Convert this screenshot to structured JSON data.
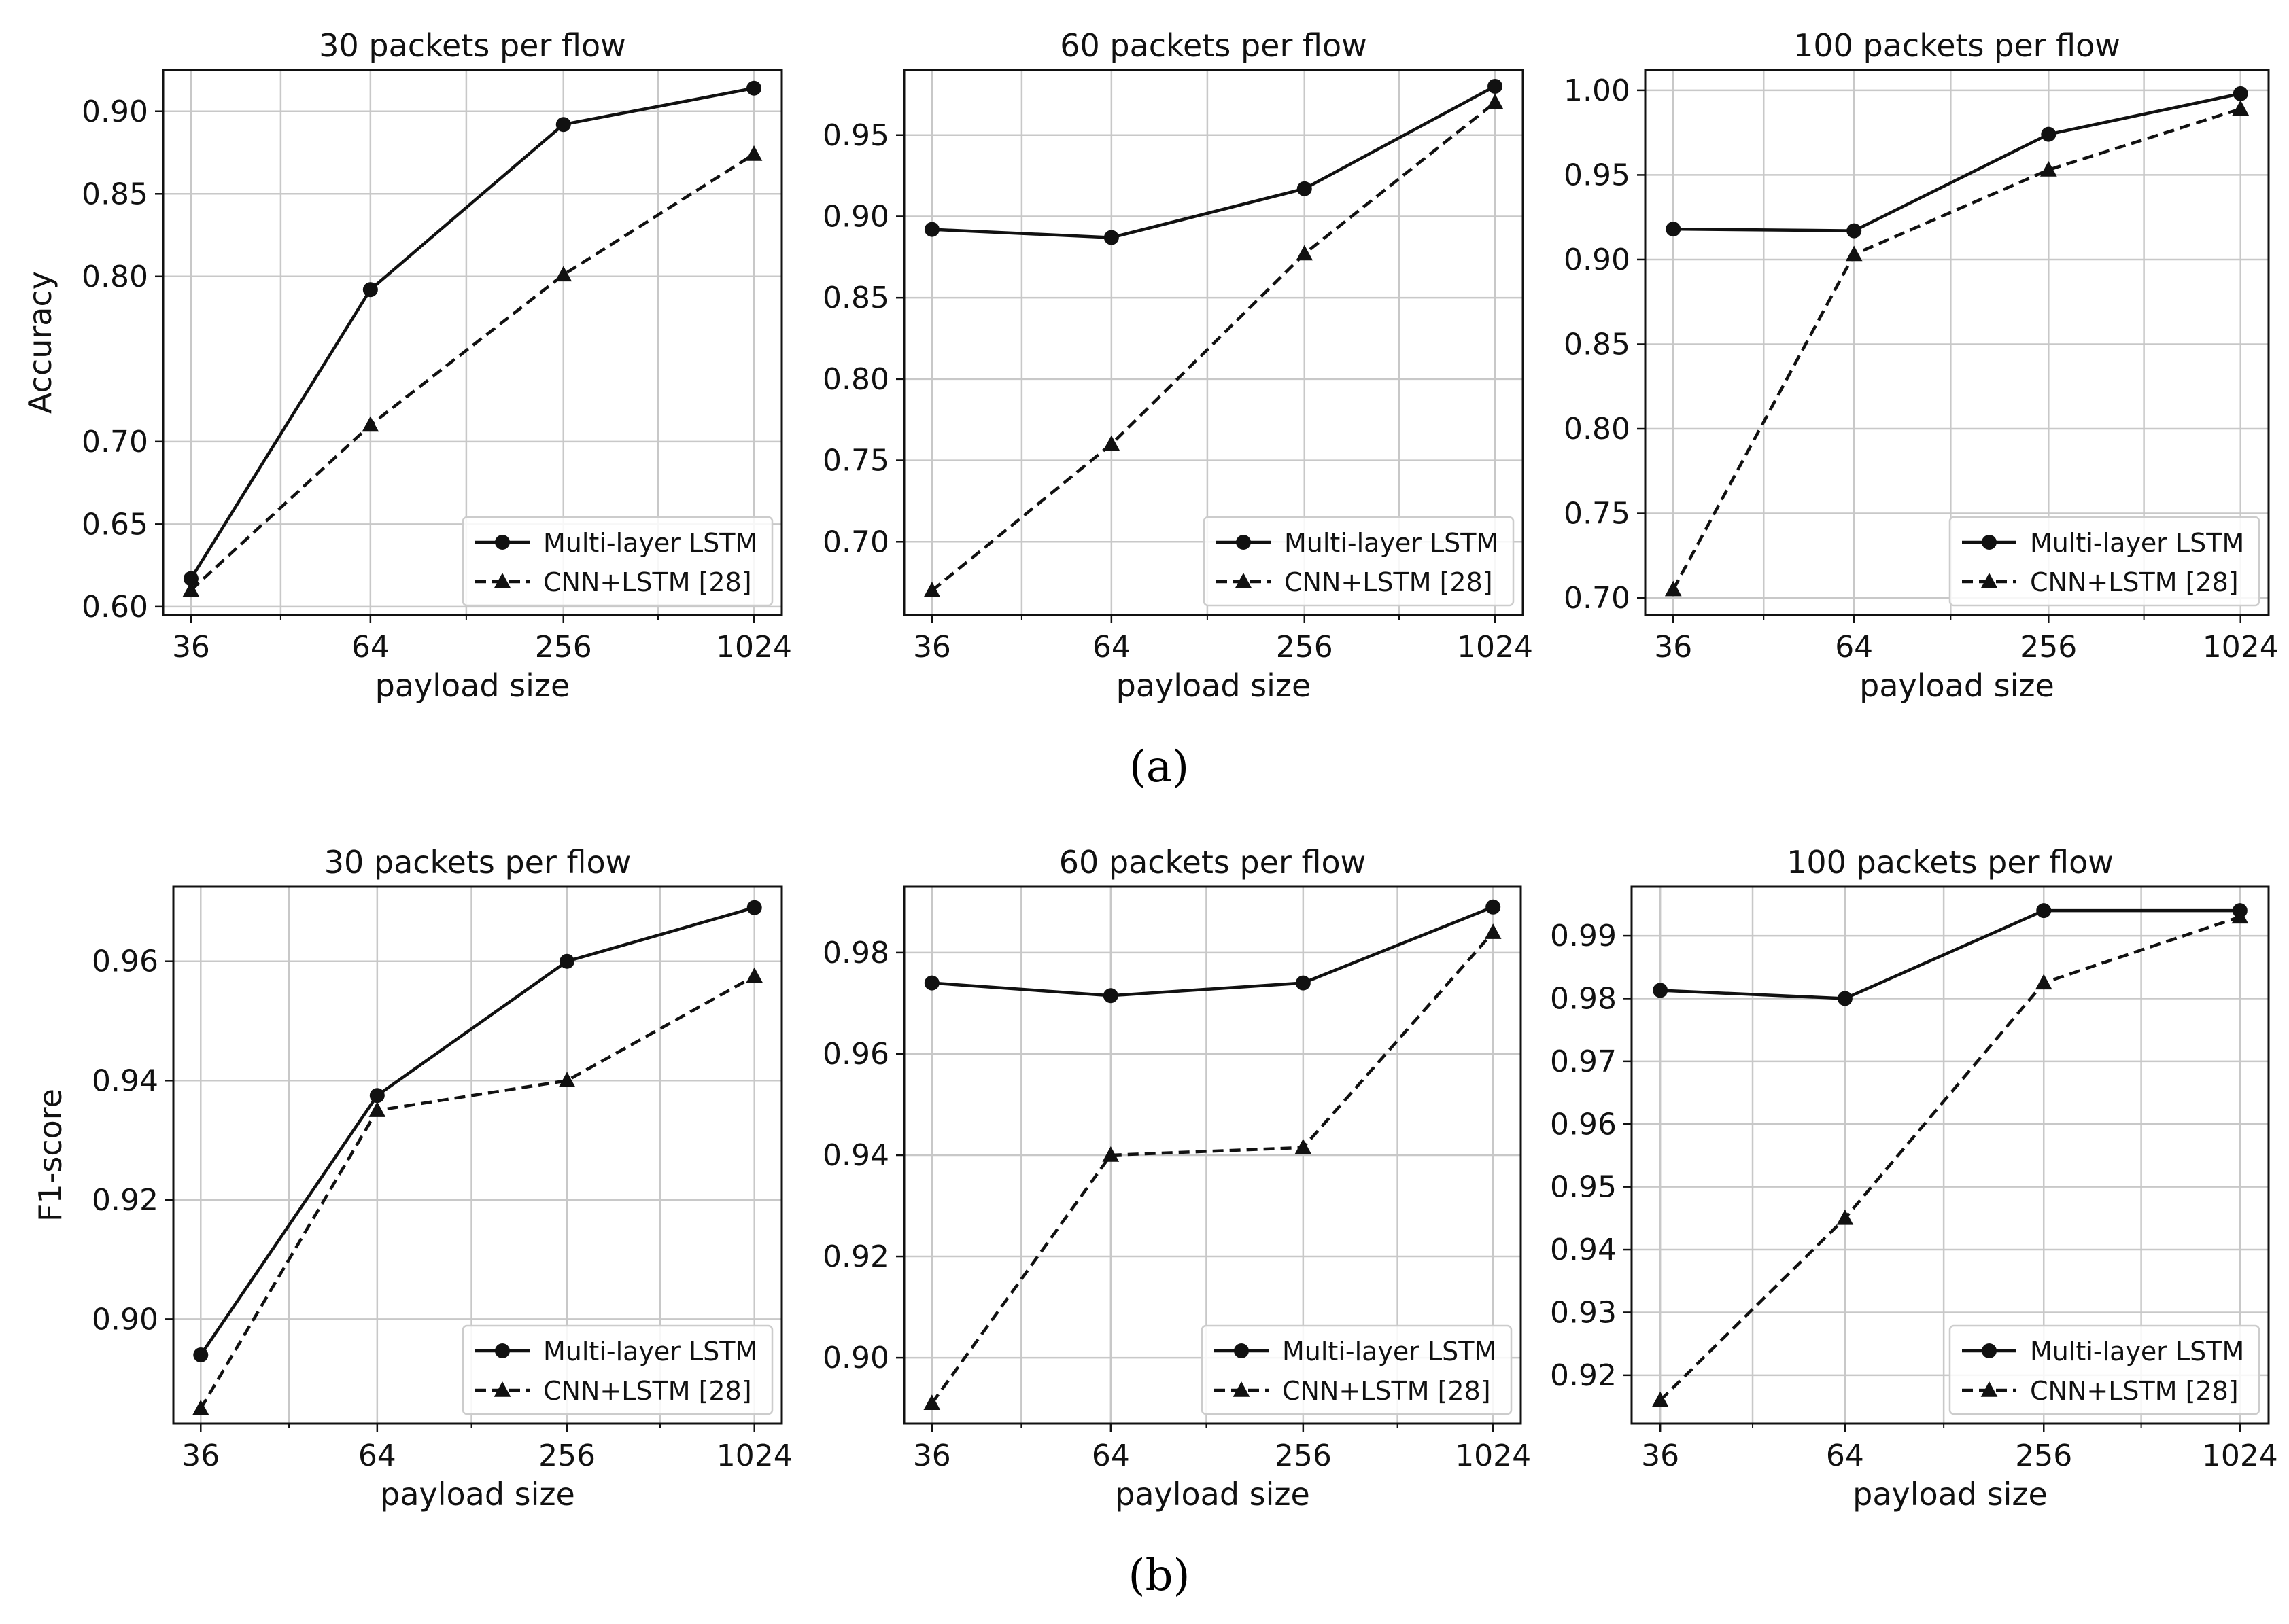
{
  "captions": {
    "a": "(a)",
    "b": "(b)"
  },
  "chart_data": [
    {
      "type": "line",
      "panel": "a",
      "title": "30 packets per flow",
      "xlabel": "payload size",
      "ylabel": "Accuracy",
      "categories": [
        "36",
        "64",
        "256",
        "1024"
      ],
      "ylim": [
        0.595,
        0.925
      ],
      "yticks": [
        0.6,
        0.65,
        0.7,
        0.8,
        0.85,
        0.9
      ],
      "ytick_labels": [
        "0.60",
        "0.65",
        "0.70",
        "0.80",
        "0.85",
        "0.90"
      ],
      "grid": true,
      "legend_position": "lower-right",
      "series": [
        {
          "name": "Multi-layer LSTM",
          "marker": "circle",
          "dash": "solid",
          "values": [
            0.617,
            0.792,
            0.892,
            0.914
          ]
        },
        {
          "name": "CNN+LSTM [28]",
          "marker": "triangle",
          "dash": "dashed",
          "values": [
            0.61,
            0.71,
            0.801,
            0.874
          ]
        }
      ]
    },
    {
      "type": "line",
      "panel": "a",
      "title": "60 packets per flow",
      "xlabel": "payload size",
      "ylabel": "",
      "categories": [
        "36",
        "64",
        "256",
        "1024"
      ],
      "ylim": [
        0.655,
        0.99
      ],
      "yticks": [
        0.7,
        0.75,
        0.8,
        0.85,
        0.9,
        0.95
      ],
      "ytick_labels": [
        "0.70",
        "0.75",
        "0.80",
        "0.85",
        "0.90",
        "0.95"
      ],
      "grid": true,
      "legend_position": "lower-right",
      "series": [
        {
          "name": "Multi-layer LSTM",
          "marker": "circle",
          "dash": "solid",
          "values": [
            0.892,
            0.887,
            0.917,
            0.98
          ]
        },
        {
          "name": "CNN+LSTM [28]",
          "marker": "triangle",
          "dash": "dashed",
          "values": [
            0.67,
            0.76,
            0.877,
            0.97
          ]
        }
      ]
    },
    {
      "type": "line",
      "panel": "a",
      "title": "100 packets per flow",
      "xlabel": "payload size",
      "ylabel": "",
      "categories": [
        "36",
        "64",
        "256",
        "1024"
      ],
      "ylim": [
        0.69,
        1.012
      ],
      "yticks": [
        0.7,
        0.75,
        0.8,
        0.85,
        0.9,
        0.95,
        1.0
      ],
      "ytick_labels": [
        "0.70",
        "0.75",
        "0.80",
        "0.85",
        "0.90",
        "0.95",
        "1.00"
      ],
      "grid": true,
      "legend_position": "lower-right",
      "series": [
        {
          "name": "Multi-layer LSTM",
          "marker": "circle",
          "dash": "solid",
          "values": [
            0.918,
            0.917,
            0.974,
            0.998
          ]
        },
        {
          "name": "CNN+LSTM [28]",
          "marker": "triangle",
          "dash": "dashed",
          "values": [
            0.705,
            0.903,
            0.953,
            0.989
          ]
        }
      ]
    },
    {
      "type": "line",
      "panel": "b",
      "title": "30 packets per flow",
      "xlabel": "payload size",
      "ylabel": "F1-score",
      "categories": [
        "36",
        "64",
        "256",
        "1024"
      ],
      "ylim": [
        0.8825,
        0.9725
      ],
      "yticks": [
        0.9,
        0.92,
        0.94,
        0.96
      ],
      "ytick_labels": [
        "0.90",
        "0.92",
        "0.94",
        "0.96"
      ],
      "grid": true,
      "legend_position": "lower-right",
      "series": [
        {
          "name": "Multi-layer LSTM",
          "marker": "circle",
          "dash": "solid",
          "values": [
            0.894,
            0.9375,
            0.96,
            0.969
          ]
        },
        {
          "name": "CNN+LSTM [28]",
          "marker": "triangle",
          "dash": "dashed",
          "values": [
            0.885,
            0.935,
            0.94,
            0.9575
          ]
        }
      ]
    },
    {
      "type": "line",
      "panel": "b",
      "title": "60 packets per flow",
      "xlabel": "payload size",
      "ylabel": "",
      "categories": [
        "36",
        "64",
        "256",
        "1024"
      ],
      "ylim": [
        0.887,
        0.993
      ],
      "yticks": [
        0.9,
        0.92,
        0.94,
        0.96,
        0.98
      ],
      "ytick_labels": [
        "0.90",
        "0.92",
        "0.94",
        "0.96",
        "0.98"
      ],
      "grid": true,
      "legend_position": "lower-right",
      "series": [
        {
          "name": "Multi-layer LSTM",
          "marker": "circle",
          "dash": "solid",
          "values": [
            0.974,
            0.9715,
            0.974,
            0.989
          ]
        },
        {
          "name": "CNN+LSTM [28]",
          "marker": "triangle",
          "dash": "dashed",
          "values": [
            0.891,
            0.94,
            0.9415,
            0.984
          ]
        }
      ]
    },
    {
      "type": "line",
      "panel": "b",
      "title": "100 packets per flow",
      "xlabel": "payload size",
      "ylabel": "",
      "categories": [
        "36",
        "64",
        "256",
        "1024"
      ],
      "ylim": [
        0.9123,
        0.9978
      ],
      "yticks": [
        0.92,
        0.93,
        0.94,
        0.95,
        0.96,
        0.97,
        0.98,
        0.99
      ],
      "ytick_labels": [
        "0.92",
        "0.93",
        "0.94",
        "0.95",
        "0.96",
        "0.97",
        "0.98",
        "0.99"
      ],
      "grid": true,
      "legend_position": "lower-right",
      "series": [
        {
          "name": "Multi-layer LSTM",
          "marker": "circle",
          "dash": "solid",
          "values": [
            0.9813,
            0.98,
            0.994,
            0.994
          ]
        },
        {
          "name": "CNN+LSTM [28]",
          "marker": "triangle",
          "dash": "dashed",
          "values": [
            0.916,
            0.945,
            0.9825,
            0.993
          ]
        }
      ]
    }
  ]
}
